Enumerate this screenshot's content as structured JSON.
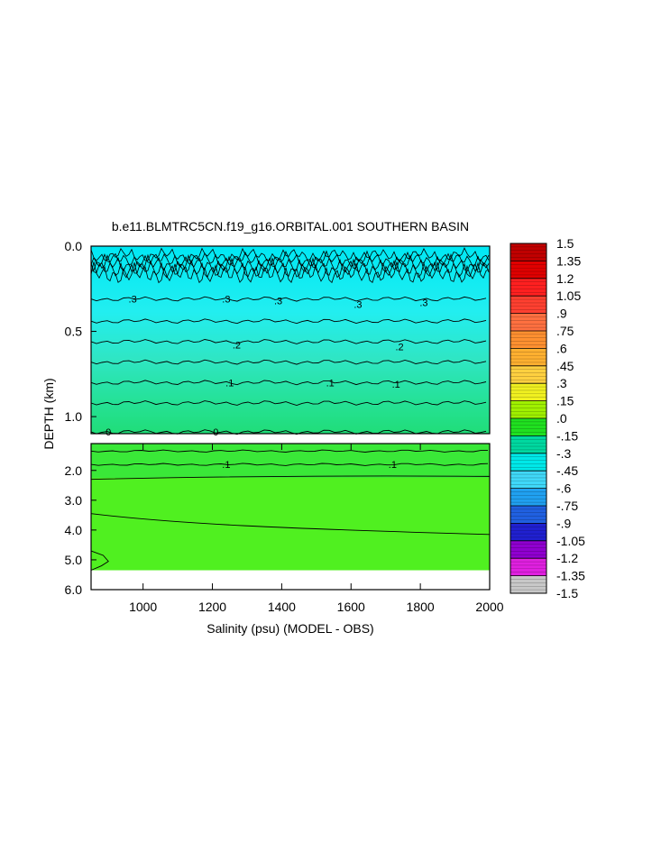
{
  "chart_data": {
    "type": "heatmap",
    "title": "b.e11.BLMTRC5CN.f19_g16.ORBITAL.001 SOUTHERN BASIN",
    "xlabel": "Salinity (psu) (MODEL - OBS)",
    "ylabel": "DEPTH (km)",
    "xlim": [
      850,
      2000
    ],
    "x_ticks": [
      "1000",
      "1200",
      "1400",
      "1600",
      "1800",
      "2000"
    ],
    "x_tick_values": [
      1000,
      1200,
      1400,
      1600,
      1800,
      2000
    ],
    "upper_panel": {
      "ylim": [
        0.0,
        1.1
      ],
      "y_ticks": [
        "0.0",
        "0.5",
        "1.0"
      ],
      "y_tick_values": [
        0.0,
        0.5,
        1.0
      ],
      "contour_labels": [
        {
          "text": ".3",
          "x": 970,
          "y": 0.31
        },
        {
          "text": ".3",
          "x": 1240,
          "y": 0.31
        },
        {
          "text": ".3",
          "x": 1390,
          "y": 0.32
        },
        {
          "text": ".3",
          "x": 1620,
          "y": 0.34
        },
        {
          "text": ".3",
          "x": 1810,
          "y": 0.33
        },
        {
          "text": ".2",
          "x": 1270,
          "y": 0.58
        },
        {
          "text": ".2",
          "x": 1740,
          "y": 0.59
        },
        {
          "text": ".1",
          "x": 1250,
          "y": 0.8
        },
        {
          "text": ".1",
          "x": 1540,
          "y": 0.8
        },
        {
          "text": ".1",
          "x": 1730,
          "y": 0.81
        },
        {
          "text": "0",
          "x": 900,
          "y": 1.09
        },
        {
          "text": "0",
          "x": 1210,
          "y": 1.09
        }
      ]
    },
    "lower_panel": {
      "ylim": [
        1.1,
        6.0
      ],
      "data_bottom": 5.35,
      "y_ticks": [
        "2.0",
        "3.0",
        "4.0",
        "5.0",
        "6.0"
      ],
      "y_tick_values": [
        2.0,
        3.0,
        4.0,
        5.0,
        6.0
      ],
      "contour_labels": [
        {
          "text": ".1",
          "x": 1240,
          "y": 1.8
        },
        {
          "text": ".1",
          "x": 1720,
          "y": 1.8
        }
      ]
    },
    "colorbar": {
      "labels": [
        "1.5",
        "1.35",
        "1.2",
        "1.05",
        ".9",
        ".75",
        ".6",
        ".45",
        ".3",
        ".15",
        ".0",
        "-.15",
        "-.3",
        "-.45",
        "-.6",
        "-.75",
        "-.9",
        "-1.05",
        "-1.2",
        "-1.35",
        "-1.5"
      ],
      "levels": [
        1.5,
        1.35,
        1.2,
        1.05,
        0.9,
        0.75,
        0.6,
        0.45,
        0.3,
        0.15,
        0.0,
        -0.15,
        -0.3,
        -0.45,
        -0.6,
        -0.75,
        -0.9,
        -1.05,
        -1.2,
        -1.35,
        -1.5
      ],
      "colors": [
        "#c00000",
        "#e00000",
        "#ff2020",
        "#ff4030",
        "#ff7040",
        "#ff9030",
        "#ffb030",
        "#ffd040",
        "#f0f020",
        "#a0f000",
        "#20e020",
        "#00d8a0",
        "#00e8e8",
        "#40d8f8",
        "#20a0f0",
        "#2060e0",
        "#2020d0",
        "#9000d0",
        "#e020e0",
        "#c8c8c8",
        "#909090"
      ]
    }
  }
}
